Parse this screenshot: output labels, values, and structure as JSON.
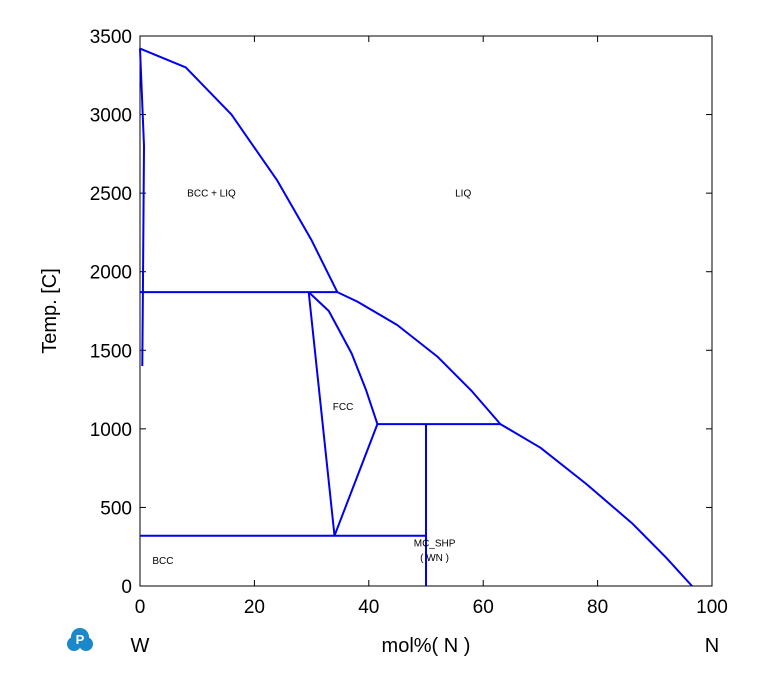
{
  "chart_data": {
    "type": "line",
    "title": "",
    "xlabel": "mol%( N )",
    "ylabel": "Temp. [C]",
    "x_left_label": "W",
    "x_right_label": "N",
    "xlim": [
      0,
      100
    ],
    "ylim": [
      0,
      3500
    ],
    "x_ticks": [
      "0",
      "20",
      "40",
      "60",
      "80",
      "100"
    ],
    "y_ticks": [
      "0",
      "500",
      "1000",
      "1500",
      "2000",
      "2500",
      "3000",
      "3500"
    ],
    "grid": false,
    "line_color": "#0000ee",
    "region_labels": [
      {
        "text": "BCC + LIQ",
        "x": 12.5,
        "y": 2480
      },
      {
        "text": "LIQ",
        "x": 56.5,
        "y": 2480
      },
      {
        "text": "FCC",
        "x": 35.5,
        "y": 1120
      },
      {
        "text": "MC_SHP",
        "x": 51.5,
        "y": 250
      },
      {
        "text": "( WN )",
        "x": 51.5,
        "y": 160
      },
      {
        "text": "BCC",
        "x": 4,
        "y": 140
      }
    ],
    "series": [
      {
        "values": [
          [
            0,
            3420
          ],
          [
            8,
            3300
          ],
          [
            16,
            3000
          ],
          [
            24,
            2580
          ],
          [
            30,
            2200
          ],
          [
            34.5,
            1870
          ]
        ]
      },
      {
        "values": [
          [
            0,
            3420
          ],
          [
            0.7,
            2800
          ],
          [
            0.5,
            1870
          ],
          [
            0.4,
            1400
          ]
        ]
      },
      {
        "values": [
          [
            0,
            1870
          ],
          [
            34.5,
            1870
          ]
        ]
      },
      {
        "values": [
          [
            34.5,
            1870
          ],
          [
            38,
            1810
          ],
          [
            45,
            1660
          ],
          [
            52,
            1460
          ],
          [
            58,
            1240
          ],
          [
            63,
            1030
          ]
        ]
      },
      {
        "values": [
          [
            29.5,
            1870
          ],
          [
            34,
            320
          ]
        ]
      },
      {
        "values": [
          [
            29.5,
            1870
          ],
          [
            33,
            1750
          ],
          [
            37,
            1480
          ],
          [
            39.5,
            1250
          ],
          [
            41.5,
            1030
          ]
        ]
      },
      {
        "values": [
          [
            34,
            320
          ],
          [
            41.5,
            1030
          ]
        ]
      },
      {
        "values": [
          [
            41.5,
            1030
          ],
          [
            63,
            1030
          ]
        ]
      },
      {
        "values": [
          [
            63,
            1030
          ],
          [
            70,
            880
          ],
          [
            78,
            650
          ],
          [
            86,
            400
          ],
          [
            92,
            180
          ],
          [
            96.5,
            0
          ]
        ]
      },
      {
        "values": [
          [
            0,
            320
          ],
          [
            50,
            320
          ]
        ]
      },
      {
        "values": [
          [
            50,
            0
          ],
          [
            50,
            1030
          ]
        ]
      }
    ]
  },
  "logo": {
    "glyph": "P",
    "color": "#1a88c9"
  }
}
